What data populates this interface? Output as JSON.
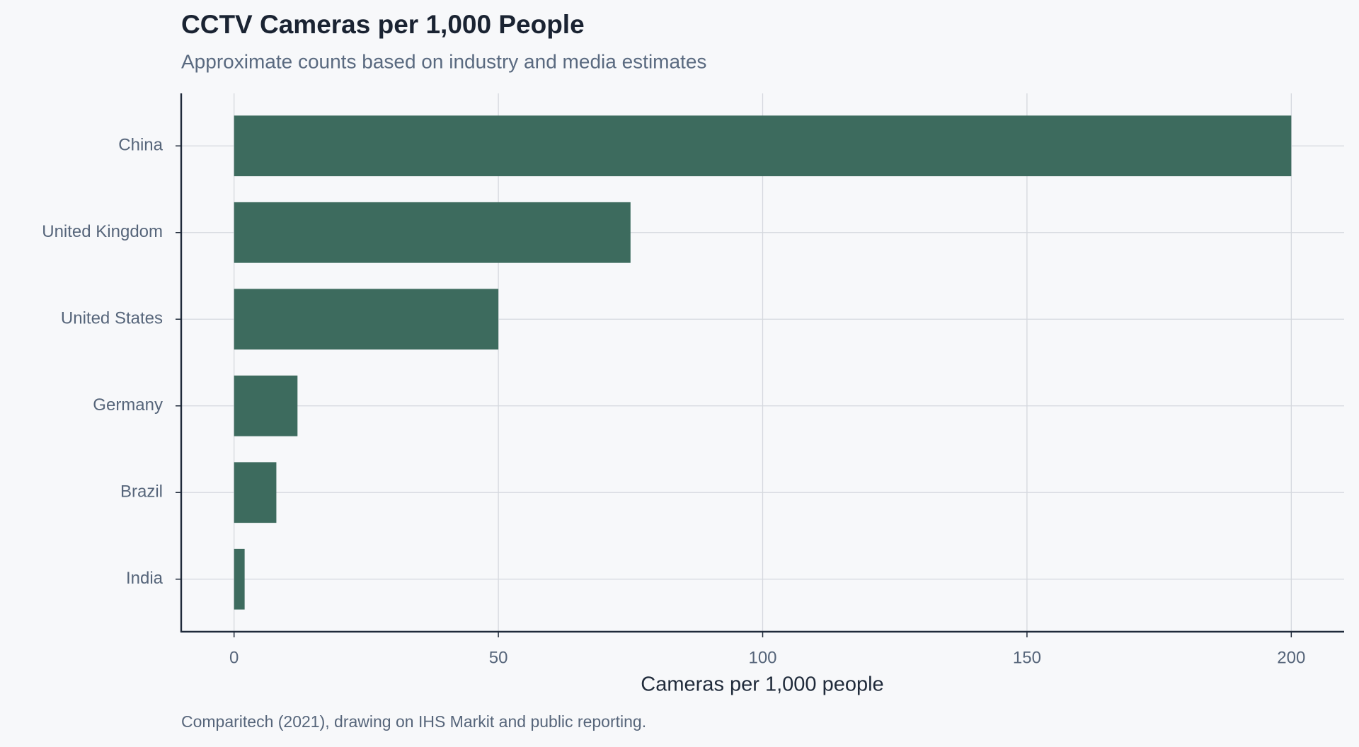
{
  "chart_data": {
    "type": "bar",
    "orientation": "horizontal",
    "title": "CCTV Cameras per 1,000 People",
    "subtitle": "Approximate counts based on industry and media estimates",
    "x_label": "Cameras per 1,000 people",
    "source": "Comparitech (2021), drawing on IHS Markit and public reporting.",
    "categories": [
      "China",
      "United Kingdom",
      "United States",
      "Germany",
      "Brazil",
      "India"
    ],
    "values": [
      200,
      75,
      50,
      12,
      8,
      2
    ],
    "color": "#3d6b5e",
    "xlim": [
      -10,
      210
    ],
    "xticks": [
      0,
      50,
      100,
      150,
      200
    ],
    "grid": true
  }
}
